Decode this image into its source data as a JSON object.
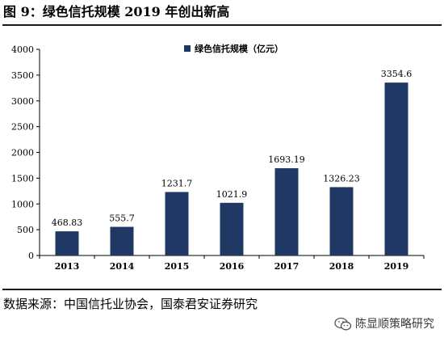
{
  "header": {
    "title": "图 9：绿色信托规模 2019 年创出新高"
  },
  "chart_data": {
    "type": "bar",
    "categories": [
      "2013",
      "2014",
      "2015",
      "2016",
      "2017",
      "2018",
      "2019"
    ],
    "series": [
      {
        "name": "绿色信托规模（亿元）",
        "values": [
          468.83,
          555.7,
          1231.7,
          1021.9,
          1693.19,
          1326.23,
          3354.6
        ],
        "labels": [
          "468.83",
          "555.7",
          "1231.7",
          "1021.9",
          "1693.19",
          "1326.23",
          "3354.6"
        ],
        "color": "#1f3864"
      }
    ],
    "ylim": [
      0,
      4000
    ],
    "yticks": [
      "0",
      "500",
      "1000",
      "1500",
      "2000",
      "2500",
      "3000",
      "3500",
      "4000"
    ],
    "grid": false,
    "legend_position": "top-right"
  },
  "footer": {
    "source": "数据来源：中国信托业协会，国泰君安证券研究",
    "watermark": "陈显顺策略研究",
    "watermark_icon": "wechat-icon"
  }
}
